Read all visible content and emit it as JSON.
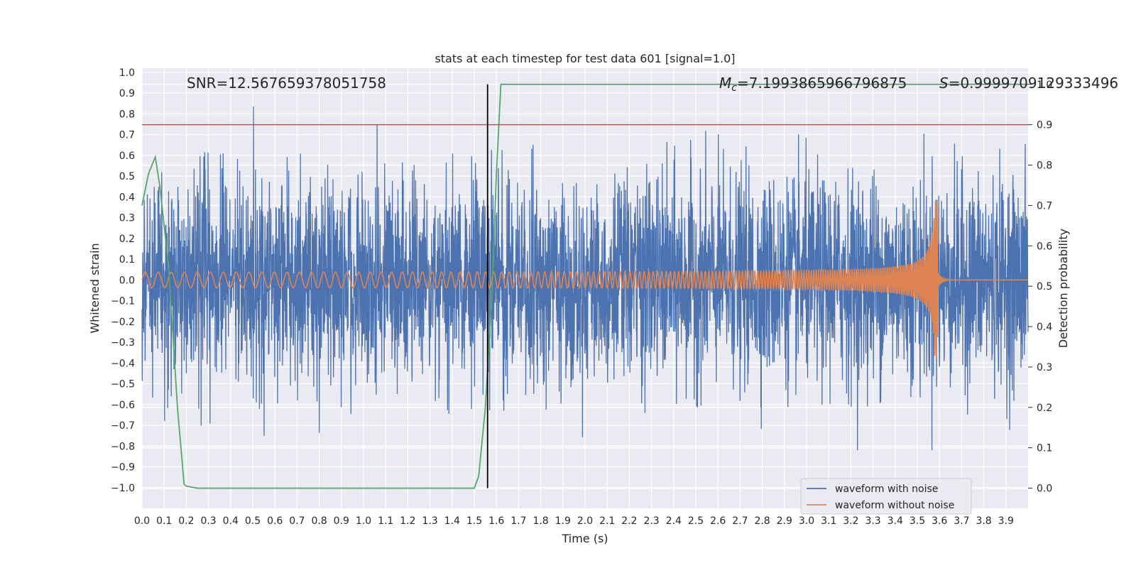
{
  "chart_data": {
    "type": "line",
    "title": "stats at each timestep for test data 601 [signal=1.0]",
    "xlabel": "Time (s)",
    "ylabel_left": "Whitened strain",
    "ylabel_right": "Detection probability",
    "xlim": [
      0.0,
      4.0
    ],
    "ylim_left": [
      -1.1,
      1.02
    ],
    "ylim_right": [
      -0.05,
      1.04
    ],
    "x_ticks": [
      "0.0",
      "0.1",
      "0.2",
      "0.3",
      "0.4",
      "0.5",
      "0.6",
      "0.7",
      "0.8",
      "0.9",
      "1.0",
      "1.1",
      "1.2",
      "1.3",
      "1.4",
      "1.5",
      "1.6",
      "1.7",
      "1.8",
      "1.9",
      "2.0",
      "2.1",
      "2.2",
      "2.3",
      "2.4",
      "2.5",
      "2.6",
      "2.7",
      "2.8",
      "2.9",
      "3.0",
      "3.1",
      "3.2",
      "3.3",
      "3.4",
      "3.5",
      "3.6",
      "3.7",
      "3.8",
      "3.9"
    ],
    "y_ticks_left": [
      "−1.0",
      "−0.9",
      "−0.8",
      "−0.7",
      "−0.6",
      "−0.5",
      "−0.4",
      "−0.3",
      "−0.2",
      "−0.1",
      "0.0",
      "0.1",
      "0.2",
      "0.3",
      "0.4",
      "0.5",
      "0.6",
      "0.7",
      "0.8",
      "0.9",
      "1.0"
    ],
    "y_ticks_right": [
      "0.0",
      "0.1",
      "0.2",
      "0.3",
      "0.4",
      "0.5",
      "0.6",
      "0.7",
      "0.8",
      "0.9",
      "1.0"
    ],
    "annotations": {
      "snr": "SNR=12.567659378051758",
      "mc_symbol": "M",
      "mc_subscript": "c",
      "mc_value": "=7.1993865966796875",
      "s_symbol": "S",
      "s_value": "=0.9999709129333496"
    },
    "threshold_line": {
      "axis": "right",
      "value": 0.9,
      "color": "#c44e52"
    },
    "event_marker": {
      "x": 1.56,
      "color": "#000000"
    },
    "legend": {
      "position": "lower-right",
      "entries": [
        {
          "label": "waveform with noise",
          "color": "#4c72b0"
        },
        {
          "label": "waveform without noise",
          "color": "#dd8452"
        }
      ]
    },
    "series": [
      {
        "name": "waveform with noise",
        "axis": "left",
        "color": "#4c72b0",
        "kind": "noise",
        "amplitude_range": [
          -0.82,
          0.92
        ],
        "sample_count": 4000
      },
      {
        "name": "waveform without noise",
        "axis": "left",
        "color": "#dd8452",
        "kind": "chirp",
        "start_amplitude": 0.035,
        "peak_amplitude": 0.4,
        "merger_time": 3.58,
        "start_frequency_hz": 17,
        "end_frequency_hz": 140
      },
      {
        "name": "Detection probability",
        "axis": "right",
        "color": "#55a868",
        "x": [
          0.0,
          0.03,
          0.06,
          0.08,
          0.12,
          0.16,
          0.19,
          0.2,
          0.25,
          0.3,
          0.6,
          1.0,
          1.3,
          1.5,
          1.52,
          1.55,
          1.58,
          1.6,
          1.62,
          1.8,
          2.5,
          3.0,
          3.5,
          4.0
        ],
        "y": [
          0.7,
          0.78,
          0.82,
          0.75,
          0.55,
          0.2,
          0.01,
          0.005,
          0.0,
          0.0,
          0.0,
          0.0,
          0.0,
          0.0,
          0.03,
          0.2,
          0.48,
          0.78,
          1.0,
          1.0,
          1.0,
          1.0,
          1.0,
          1.0
        ]
      }
    ]
  }
}
